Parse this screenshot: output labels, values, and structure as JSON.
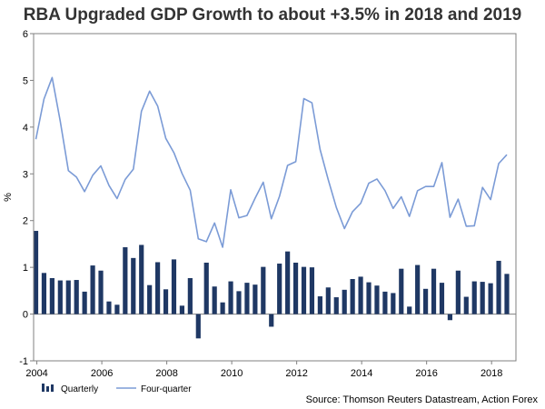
{
  "title": "RBA Upgraded GDP Growth to about +3.5% in 2018 and 2019",
  "source": "Source: Thomson Reuters Datastream, Action Forex",
  "colors": {
    "bars": "#1f3864",
    "line": "#7b9bd6",
    "axis": "#808080"
  },
  "chart_data": {
    "type": "bar+line",
    "ylabel": "%",
    "ylim": [
      -1,
      6
    ],
    "yticks": [
      -1,
      0,
      1,
      2,
      3,
      4,
      5,
      6
    ],
    "xlim": [
      2003.9,
      2018.75
    ],
    "xticks": [
      2004,
      2006,
      2008,
      2010,
      2012,
      2014,
      2016,
      2018
    ],
    "xtick_labels": [
      "2004",
      "2006",
      "2008",
      "2010",
      "2012",
      "2014",
      "2016",
      "2018"
    ],
    "legend": [
      "Quarterly",
      "Four-quarter"
    ],
    "series": [
      {
        "name": "Quarterly",
        "kind": "bar",
        "values": [
          1.78,
          0.88,
          0.77,
          0.72,
          0.72,
          0.73,
          0.48,
          1.04,
          0.93,
          0.27,
          0.2,
          1.43,
          1.2,
          1.48,
          0.62,
          1.11,
          0.53,
          1.17,
          0.18,
          0.77,
          -0.52,
          1.1,
          0.59,
          0.25,
          0.7,
          0.49,
          0.67,
          0.63,
          1.01,
          -0.27,
          1.08,
          1.34,
          1.1,
          1.01,
          1.0,
          0.38,
          0.57,
          0.36,
          0.52,
          0.75,
          0.8,
          0.68,
          0.61,
          0.48,
          0.45,
          0.97,
          0.16,
          1.05,
          0.54,
          0.97,
          0.67,
          -0.13,
          0.93,
          0.37,
          0.7,
          0.69,
          0.66,
          1.14,
          0.86
        ]
      },
      {
        "name": "Four-quarter",
        "kind": "line",
        "values": [
          3.74,
          4.6,
          5.06,
          4.13,
          3.07,
          2.93,
          2.62,
          2.97,
          3.17,
          2.75,
          2.47,
          2.88,
          3.1,
          4.34,
          4.77,
          4.45,
          3.76,
          3.45,
          3.01,
          2.65,
          1.61,
          1.55,
          1.95,
          1.43,
          2.66,
          2.06,
          2.11,
          2.48,
          2.82,
          2.04,
          2.52,
          3.18,
          3.26,
          4.61,
          4.52,
          3.52,
          2.88,
          2.28,
          1.83,
          2.19,
          2.37,
          2.8,
          2.89,
          2.64,
          2.26,
          2.51,
          2.09,
          2.64,
          2.73,
          2.73,
          3.24,
          2.07,
          2.46,
          1.88,
          1.89,
          2.71,
          2.45,
          3.22,
          3.41
        ]
      }
    ]
  }
}
